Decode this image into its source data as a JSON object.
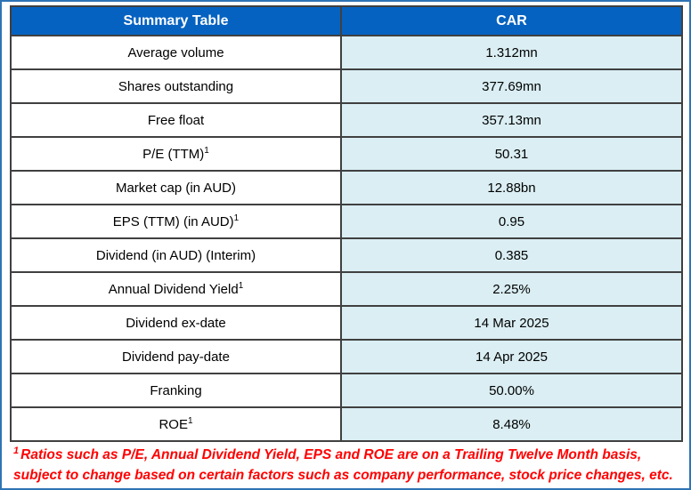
{
  "colors": {
    "header_bg": "#0562c1",
    "header_text": "#ffffff",
    "value_cell_bg": "#daeef3",
    "grid_border": "#404040",
    "outer_frame": "#2e74b5",
    "footnote_text": "#ff0000"
  },
  "header": {
    "col_label": "Summary Table",
    "col_value": "CAR"
  },
  "rows": [
    {
      "label": "Average volume",
      "sup": null,
      "value": "1.312mn"
    },
    {
      "label": "Shares outstanding",
      "sup": null,
      "value": "377.69mn"
    },
    {
      "label": "Free float",
      "sup": null,
      "value": "357.13mn"
    },
    {
      "label": "P/E (TTM)",
      "sup": "1",
      "value": "50.31"
    },
    {
      "label": "Market cap (in AUD)",
      "sup": null,
      "value": "12.88bn"
    },
    {
      "label": "EPS (TTM) (in AUD)",
      "sup": "1",
      "value": "0.95"
    },
    {
      "label": "Dividend (in AUD) (Interim)",
      "sup": null,
      "value": "0.385"
    },
    {
      "label": "Annual Dividend Yield",
      "sup": "1",
      "value": "2.25%"
    },
    {
      "label": "Dividend ex-date",
      "sup": null,
      "value": "14 Mar 2025"
    },
    {
      "label": "Dividend pay-date",
      "sup": null,
      "value": "14 Apr 2025"
    },
    {
      "label": "Franking",
      "sup": null,
      "value": "50.00%"
    },
    {
      "label": "ROE",
      "sup": "1",
      "value": "8.48%"
    }
  ],
  "footnote": {
    "sup": "1",
    "text": "Ratios such as P/E, Annual Dividend Yield, EPS and ROE are on a Trailing Twelve Month basis, subject to change based on certain factors such as company performance, stock price changes, etc."
  }
}
